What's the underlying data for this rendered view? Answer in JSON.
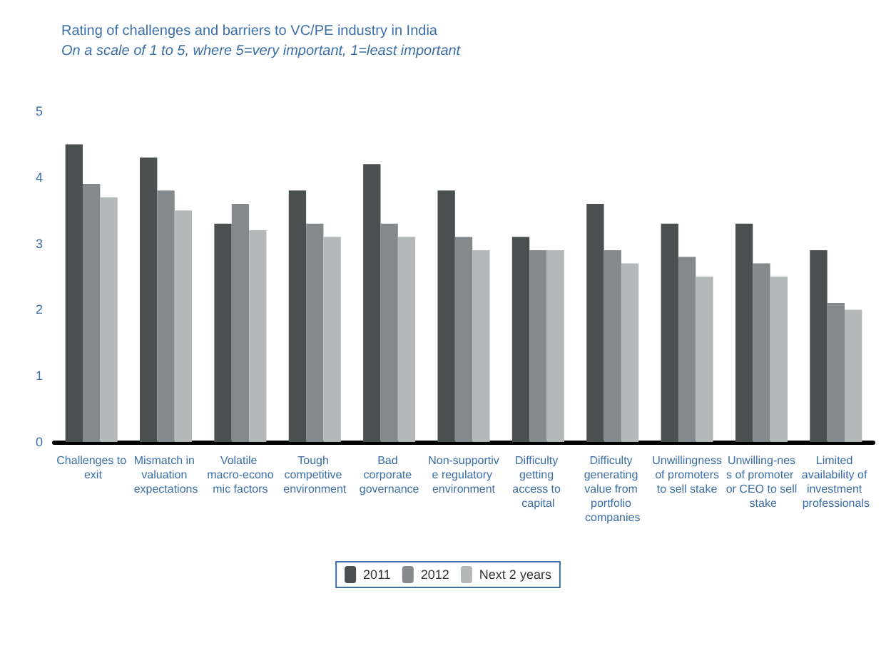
{
  "chart_data": {
    "type": "bar",
    "title": "Rating of challenges and barriers to VC/PE industry in India",
    "subtitle": "On a scale of 1 to 5, where 5=very important, 1=least important",
    "categories": [
      "Challenges to exit",
      "Mismatch in valuation expectations",
      "Volatile macro-economic factors",
      "Tough competitive environment",
      "Bad corporate governance",
      "Non-supportive regulatory environment",
      "Difficulty getting access to capital",
      "Difficulty generating value from portfolio companies",
      "Unwillingness of promoters to sell stake",
      "Unwilling-ness of promoter or CEO to sell stake",
      "Limited availability of investment professionals"
    ],
    "series": [
      {
        "name": "2011",
        "color": "#4a4f50",
        "values": [
          4.5,
          4.3,
          3.3,
          3.8,
          4.2,
          3.8,
          3.1,
          3.6,
          3.3,
          3.3,
          2.9
        ]
      },
      {
        "name": "2012",
        "color": "#848a8b",
        "values": [
          3.9,
          3.8,
          3.6,
          3.3,
          3.3,
          3.1,
          2.9,
          2.9,
          2.8,
          2.7,
          2.1
        ]
      },
      {
        "name": "Next 2 years",
        "color": "#b4b8b9",
        "values": [
          3.7,
          3.5,
          3.2,
          3.1,
          3.1,
          2.9,
          2.9,
          2.7,
          2.5,
          2.5,
          2.0
        ]
      }
    ],
    "ylim": [
      0,
      5
    ],
    "yticks": [
      0,
      1,
      2,
      3,
      4,
      5
    ],
    "grid": false,
    "legend": "bottom"
  }
}
